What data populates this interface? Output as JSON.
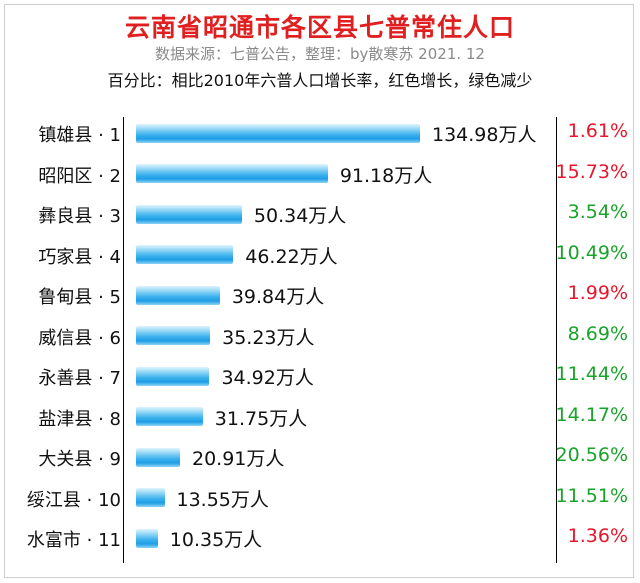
{
  "header": {
    "title": "云南省昭通市各区县七普常住人口",
    "source": "数据来源：七普公告，整理：by散寒苏  2021. 12",
    "note": "百分比：相比2010年六普人口增长率，红色增长，绿色减少"
  },
  "colors": {
    "increase": "#e8162c",
    "decrease": "#1aa32a",
    "bar": "#29a8eb"
  },
  "chart_data": {
    "type": "bar",
    "orientation": "horizontal",
    "value_unit": "万人",
    "xlim": [
      0,
      134.98
    ],
    "rows": [
      {
        "label": "镇雄县 · 1",
        "value": 134.98,
        "value_text": "134.98万人",
        "rate_text": "1.61%",
        "trend": "increase"
      },
      {
        "label": "昭阳区 · 2",
        "value": 91.18,
        "value_text": "91.18万人",
        "rate_text": "15.73%",
        "trend": "increase"
      },
      {
        "label": "彝良县 · 3",
        "value": 50.34,
        "value_text": "50.34万人",
        "rate_text": "3.54%",
        "trend": "decrease"
      },
      {
        "label": "巧家县 · 4",
        "value": 46.22,
        "value_text": "46.22万人",
        "rate_text": "10.49%",
        "trend": "decrease"
      },
      {
        "label": "鲁甸县 · 5",
        "value": 39.84,
        "value_text": "39.84万人",
        "rate_text": "1.99%",
        "trend": "increase"
      },
      {
        "label": "威信县 · 6",
        "value": 35.23,
        "value_text": "35.23万人",
        "rate_text": "8.69%",
        "trend": "decrease"
      },
      {
        "label": "永善县 · 7",
        "value": 34.92,
        "value_text": "34.92万人",
        "rate_text": "11.44%",
        "trend": "decrease"
      },
      {
        "label": "盐津县 · 8",
        "value": 31.75,
        "value_text": "31.75万人",
        "rate_text": "14.17%",
        "trend": "decrease"
      },
      {
        "label": "大关县 · 9",
        "value": 20.91,
        "value_text": "20.91万人",
        "rate_text": "20.56%",
        "trend": "decrease"
      },
      {
        "label": "绥江县 · 10",
        "value": 13.55,
        "value_text": "13.55万人",
        "rate_text": "11.51%",
        "trend": "decrease"
      },
      {
        "label": "水富市 · 11",
        "value": 10.35,
        "value_text": "10.35万人",
        "rate_text": "1.36%",
        "trend": "increase"
      }
    ]
  }
}
